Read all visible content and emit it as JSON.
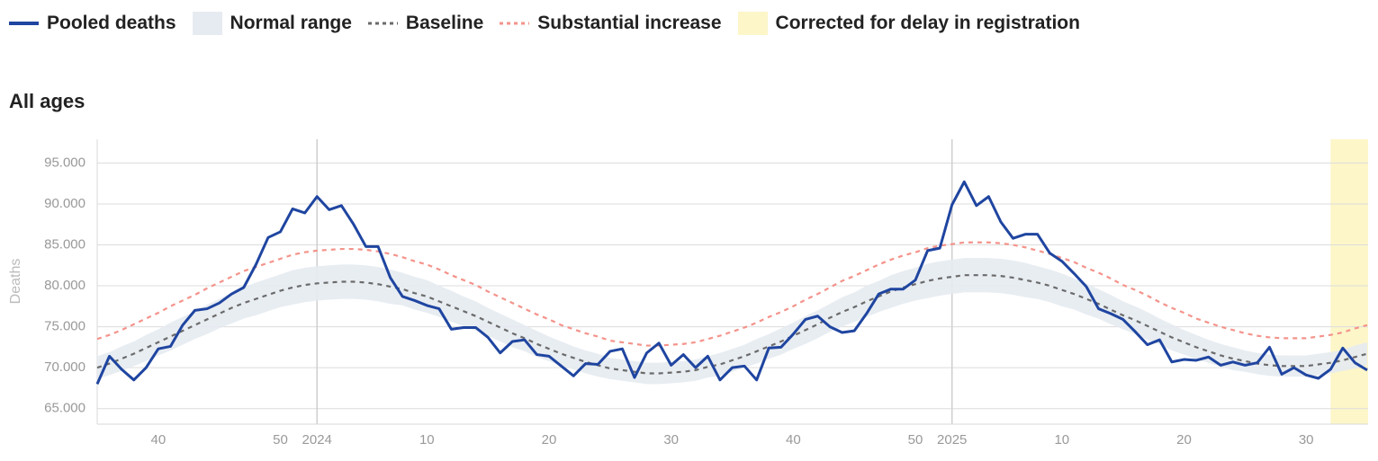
{
  "chart_data": {
    "type": "line",
    "title": "All ages",
    "ylabel": "Deaths",
    "categories": [
      null,
      null,
      null,
      null,
      null,
      "40",
      null,
      null,
      null,
      null,
      null,
      null,
      null,
      null,
      null,
      "50",
      null,
      null,
      "2024",
      null,
      null,
      null,
      null,
      null,
      null,
      null,
      null,
      "10",
      null,
      null,
      null,
      null,
      null,
      null,
      null,
      null,
      null,
      "20",
      null,
      null,
      null,
      null,
      null,
      null,
      null,
      null,
      null,
      "30",
      null,
      null,
      null,
      null,
      null,
      null,
      null,
      null,
      null,
      "40",
      null,
      null,
      null,
      null,
      null,
      null,
      null,
      null,
      null,
      "50",
      null,
      null,
      "2025",
      null,
      null,
      null,
      null,
      null,
      null,
      null,
      null,
      "10",
      null,
      null,
      null,
      null,
      null,
      null,
      null,
      null,
      null,
      "20",
      null,
      null,
      null,
      null,
      null,
      null,
      null,
      null,
      null,
      "30",
      null,
      null,
      null,
      null,
      null
    ],
    "ylim": [
      63100,
      97900
    ],
    "yticks": [
      {
        "value": 65000,
        "label": "65.000"
      },
      {
        "value": 70000,
        "label": "70.000"
      },
      {
        "value": 75000,
        "label": "75.000"
      },
      {
        "value": 80000,
        "label": "80.000"
      },
      {
        "value": 85000,
        "label": "85.000"
      },
      {
        "value": 90000,
        "label": "90.000"
      },
      {
        "value": 95000,
        "label": "95.000"
      }
    ],
    "grid": true,
    "series": [
      {
        "name": "Pooled deaths",
        "style": "solid",
        "color": "#1f45a0",
        "values": [
          68000,
          71400,
          69800,
          68500,
          70000,
          72300,
          72600,
          75200,
          77000,
          77200,
          77900,
          79000,
          79800,
          82600,
          85900,
          86600,
          89400,
          88900,
          90900,
          89300,
          89800,
          87500,
          84800,
          84800,
          81000,
          78700,
          78200,
          77600,
          77200,
          74700,
          74900,
          74900,
          73700,
          71800,
          73200,
          73400,
          71600,
          71400,
          70200,
          69000,
          70500,
          70400,
          72000,
          72300,
          68800,
          71800,
          73000,
          70300,
          71600,
          70000,
          71400,
          68500,
          70000,
          70200,
          68500,
          72400,
          72500,
          74100,
          75900,
          76300,
          75000,
          74300,
          74500,
          76600,
          79000,
          79600,
          79600,
          80700,
          84300,
          84600,
          89900,
          92700,
          89800,
          90900,
          87800,
          85800,
          86300,
          86300,
          84000,
          83000,
          81500,
          79900,
          77200,
          76600,
          75900,
          74400,
          72800,
          73400,
          70700,
          71000,
          70900,
          71300,
          70300,
          70700,
          70300,
          70600,
          72500,
          69200,
          70000,
          69100,
          68700,
          69800,
          72400,
          70600,
          69700
        ]
      },
      {
        "name": "Normal range",
        "style": "band",
        "color": "#e6ebf1",
        "lower": [
          68600,
          69100,
          69600,
          70200,
          70800,
          71500,
          72100,
          72800,
          73500,
          74100,
          74800,
          75400,
          76000,
          76400,
          76900,
          77400,
          77700,
          78000,
          78200,
          78300,
          78400,
          78400,
          78300,
          78100,
          77800,
          77600,
          77100,
          76700,
          76200,
          75600,
          75100,
          74500,
          73900,
          73200,
          72500,
          72000,
          71300,
          70800,
          70200,
          69800,
          69300,
          68900,
          68600,
          68400,
          68200,
          68000,
          68000,
          68100,
          68200,
          68400,
          68800,
          69000,
          69500,
          70000,
          70500,
          71100,
          71600,
          72300,
          72900,
          73600,
          74400,
          75000,
          75600,
          76200,
          76800,
          77300,
          77800,
          78200,
          78500,
          78800,
          79000,
          79200,
          79200,
          79200,
          79100,
          78900,
          78600,
          78400,
          78000,
          77500,
          77100,
          76500,
          76000,
          75300,
          74700,
          74100,
          73400,
          72800,
          72100,
          71600,
          71000,
          70600,
          70100,
          69700,
          69500,
          69200,
          69000,
          68900,
          68900,
          68900,
          69100,
          69300,
          69600,
          69900,
          70300
        ],
        "upper": [
          71400,
          71900,
          72600,
          73200,
          74000,
          74700,
          75500,
          76200,
          76900,
          77700,
          78400,
          79200,
          79800,
          80400,
          80900,
          81400,
          81900,
          82200,
          82400,
          82500,
          82600,
          82600,
          82500,
          82300,
          82000,
          81600,
          81100,
          80700,
          80000,
          79400,
          78700,
          78100,
          77300,
          76600,
          75900,
          75200,
          74500,
          73800,
          73200,
          72600,
          72100,
          71700,
          71200,
          71000,
          70800,
          70600,
          70600,
          70700,
          70800,
          71000,
          71400,
          71800,
          72300,
          72800,
          73500,
          74100,
          74800,
          75500,
          76300,
          77000,
          77800,
          78600,
          79200,
          80000,
          80600,
          81300,
          81800,
          82200,
          82700,
          83000,
          83200,
          83400,
          83400,
          83400,
          83300,
          83100,
          82800,
          82400,
          82000,
          81500,
          80900,
          80300,
          79600,
          78900,
          78100,
          77500,
          76800,
          76000,
          75300,
          74600,
          74000,
          73400,
          72900,
          72500,
          72100,
          71800,
          71600,
          71500,
          71500,
          71500,
          71700,
          71900,
          72200,
          72700,
          73100
        ]
      },
      {
        "name": "Baseline",
        "style": "dashed",
        "color": "#6b6b6b",
        "values": [
          70000,
          70500,
          71100,
          71700,
          72400,
          73100,
          73800,
          74500,
          75200,
          75900,
          76600,
          77300,
          77900,
          78400,
          78900,
          79400,
          79800,
          80100,
          80300,
          80400,
          80500,
          80500,
          80400,
          80200,
          79900,
          79600,
          79100,
          78700,
          78100,
          77500,
          76900,
          76300,
          75600,
          74900,
          74200,
          73600,
          72900,
          72300,
          71700,
          71200,
          70700,
          70300,
          69900,
          69700,
          69500,
          69300,
          69300,
          69400,
          69500,
          69700,
          70100,
          70400,
          70900,
          71400,
          72000,
          72600,
          73200,
          73900,
          74600,
          75300,
          76100,
          76800,
          77400,
          78100,
          78700,
          79300,
          79800,
          80200,
          80600,
          80900,
          81100,
          81300,
          81300,
          81300,
          81200,
          81000,
          80700,
          80400,
          80000,
          79500,
          79000,
          78400,
          77800,
          77100,
          76400,
          75800,
          75100,
          74400,
          73700,
          73100,
          72500,
          72000,
          71500,
          71100,
          70800,
          70500,
          70300,
          70200,
          70200,
          70200,
          70400,
          70600,
          70900,
          71300,
          71700
        ]
      },
      {
        "name": "Substantial increase",
        "style": "dashed",
        "color": "#f4938b",
        "values": [
          73500,
          74000,
          74600,
          75300,
          76000,
          76700,
          77500,
          78200,
          78900,
          79700,
          80400,
          81100,
          81800,
          82300,
          82800,
          83300,
          83800,
          84100,
          84300,
          84400,
          84500,
          84500,
          84400,
          84200,
          83900,
          83500,
          83000,
          82600,
          82000,
          81300,
          80700,
          80100,
          79300,
          78600,
          77900,
          77200,
          76500,
          75900,
          75200,
          74700,
          74200,
          73800,
          73300,
          73100,
          72900,
          72700,
          72700,
          72800,
          72900,
          73100,
          73500,
          73900,
          74400,
          74900,
          75500,
          76200,
          76800,
          77500,
          78300,
          79000,
          79800,
          80600,
          81200,
          81900,
          82600,
          83200,
          83700,
          84100,
          84600,
          84900,
          85100,
          85300,
          85300,
          85300,
          85200,
          85000,
          84700,
          84300,
          83900,
          83400,
          82900,
          82200,
          81600,
          80900,
          80100,
          79500,
          78800,
          78000,
          77300,
          76700,
          76000,
          75500,
          75000,
          74600,
          74200,
          73900,
          73700,
          73600,
          73600,
          73600,
          73800,
          74000,
          74300,
          74800,
          75200
        ]
      },
      {
        "name": "Corrected for delay in registration",
        "style": "highlight",
        "color": "#fdf6c9",
        "count": 4
      }
    ]
  }
}
